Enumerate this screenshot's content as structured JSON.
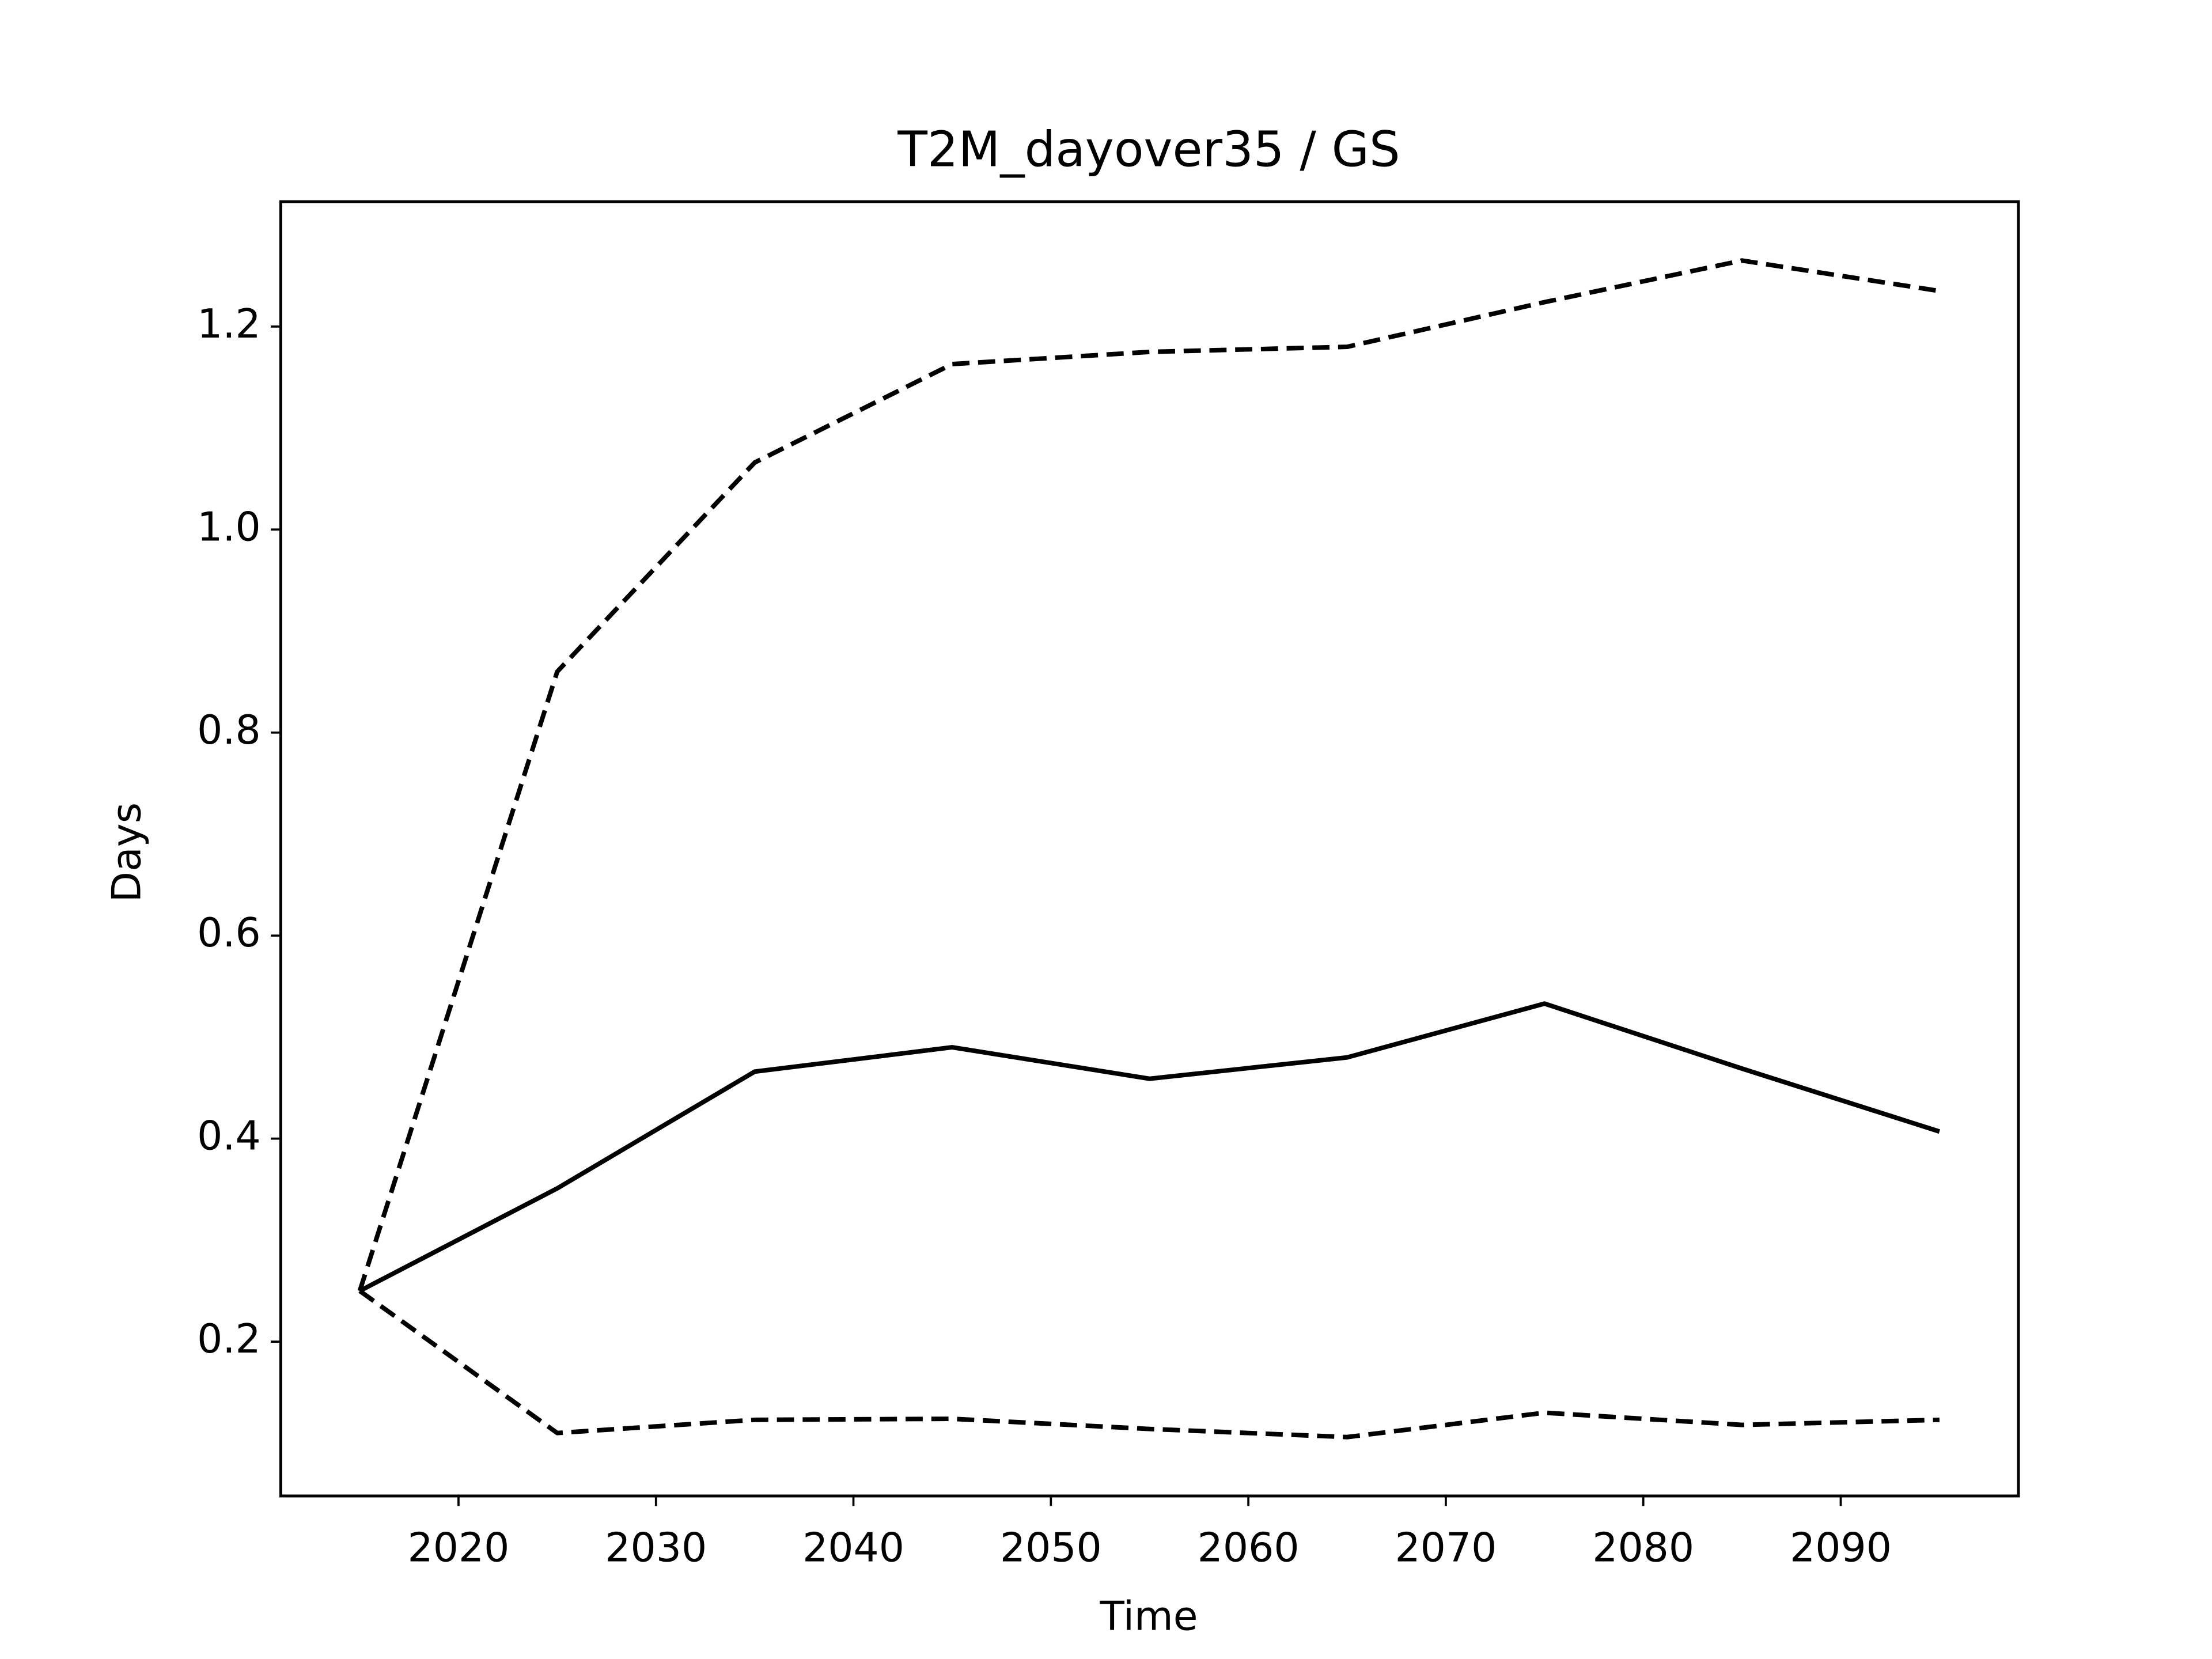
{
  "chart_data": {
    "type": "line",
    "title": "T2M_dayover35 / GS",
    "xlabel": "Time",
    "ylabel": "Days",
    "x": [
      2015,
      2025,
      2035,
      2045,
      2055,
      2065,
      2075,
      2085,
      2095
    ],
    "series": [
      {
        "color": "#000000",
        "linestyle": "dashed",
        "values": [
          0.25,
          0.86,
          1.066,
          1.163,
          1.175,
          1.18,
          1.224,
          1.265,
          1.235
        ]
      },
      {
        "color": "#000000",
        "linestyle": "solid",
        "values": [
          0.25,
          0.351,
          0.466,
          0.49,
          0.459,
          0.48,
          0.533,
          0.469,
          0.407
        ]
      },
      {
        "color": "#000000",
        "linestyle": "dashed",
        "values": [
          0.25,
          0.11,
          0.123,
          0.124,
          0.114,
          0.106,
          0.13,
          0.118,
          0.123
        ]
      }
    ],
    "xlim": [
      2011,
      2099
    ],
    "ylim": [
      0.048,
      1.323
    ],
    "xticks": [
      2020,
      2030,
      2040,
      2050,
      2060,
      2070,
      2080,
      2090
    ],
    "yticks": [
      0.2,
      0.4,
      0.6,
      0.8,
      {
        "value": 1,
        "label": "1.0"
      },
      1.2
    ],
    "grid": false
  }
}
